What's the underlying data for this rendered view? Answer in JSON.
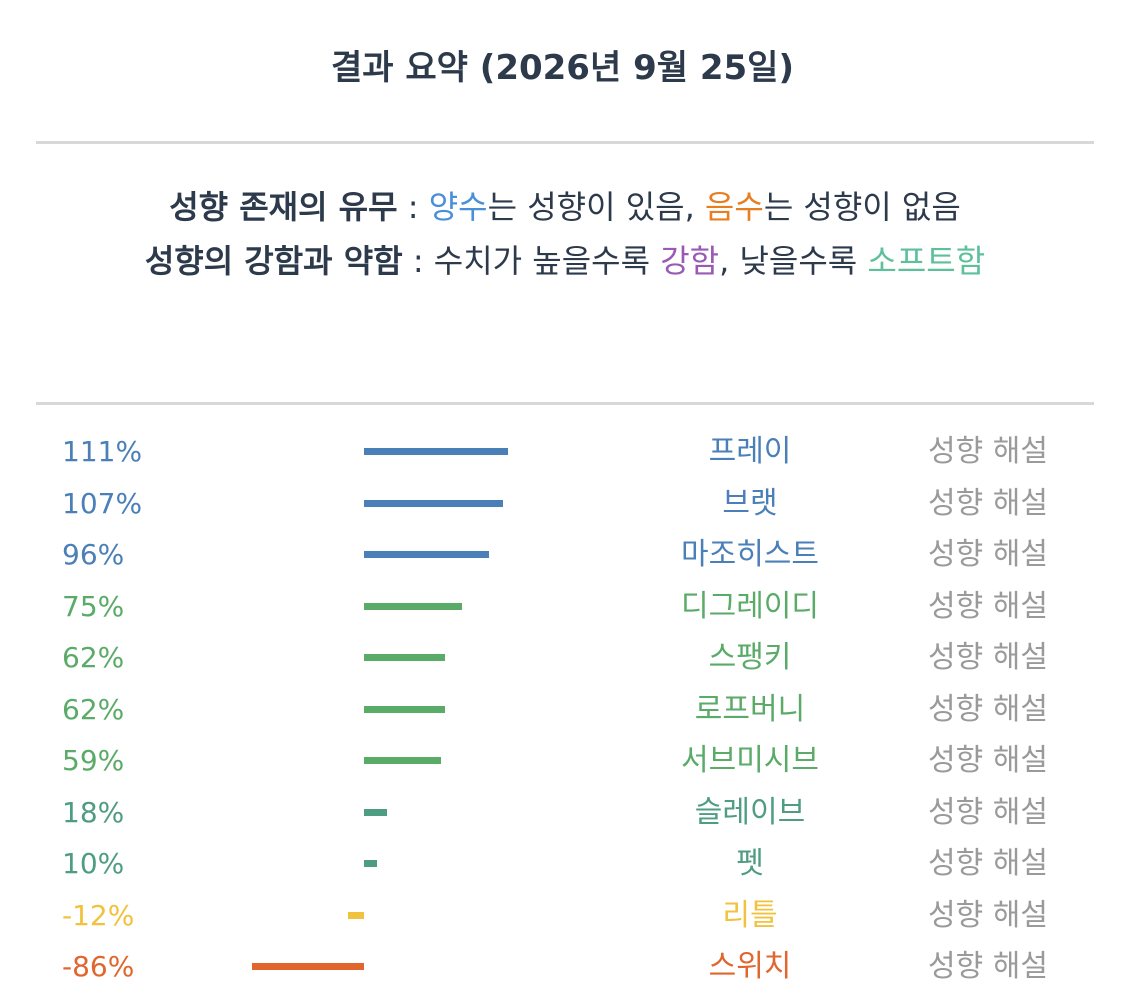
{
  "title": "결과 요약 (2026년 9월 25일)",
  "legend": {
    "line1_label": "성향 존재의 유무",
    "line1_sep": " : ",
    "pos_word": "양수",
    "line1_mid": "는 성향이 있음, ",
    "neg_word": "음수",
    "line1_end": "는 성향이 없음",
    "line2_label": "성향의 강함과 약함",
    "line2_sep": " : 수치가 높을수록 ",
    "strong_word": "강함",
    "line2_mid": ", 낮을수록 ",
    "soft_word": "소프트함"
  },
  "explain_label": "성향 해설",
  "chart_data": {
    "type": "bar",
    "orientation": "horizontal",
    "categories": [
      "프레이",
      "브랫",
      "마조히스트",
      "디그레이디",
      "스팽키",
      "로프버니",
      "서브미시브",
      "슬레이브",
      "펫",
      "리틀",
      "스위치"
    ],
    "value_labels": [
      "111%",
      "107%",
      "96%",
      "75%",
      "62%",
      "62%",
      "59%",
      "18%",
      "10%",
      "-12%",
      "-86%"
    ],
    "values": [
      111,
      107,
      96,
      75,
      62,
      62,
      59,
      18,
      10,
      -12,
      -86
    ],
    "colors": [
      "#4a7fb8",
      "#4a7fb8",
      "#4a7fb8",
      "#5aaa68",
      "#5aaa68",
      "#5aaa68",
      "#5aaa68",
      "#4e9d82",
      "#4e9d82",
      "#f0c23e",
      "#e0662e"
    ],
    "label_colors": [
      "#4a7fb8",
      "#4a7fb8",
      "#4a7fb8",
      "#5aaa68",
      "#5aaa68",
      "#5aaa68",
      "#5aaa68",
      "#4e9d82",
      "#4e9d82",
      "#f0c23e",
      "#e0662e"
    ]
  }
}
